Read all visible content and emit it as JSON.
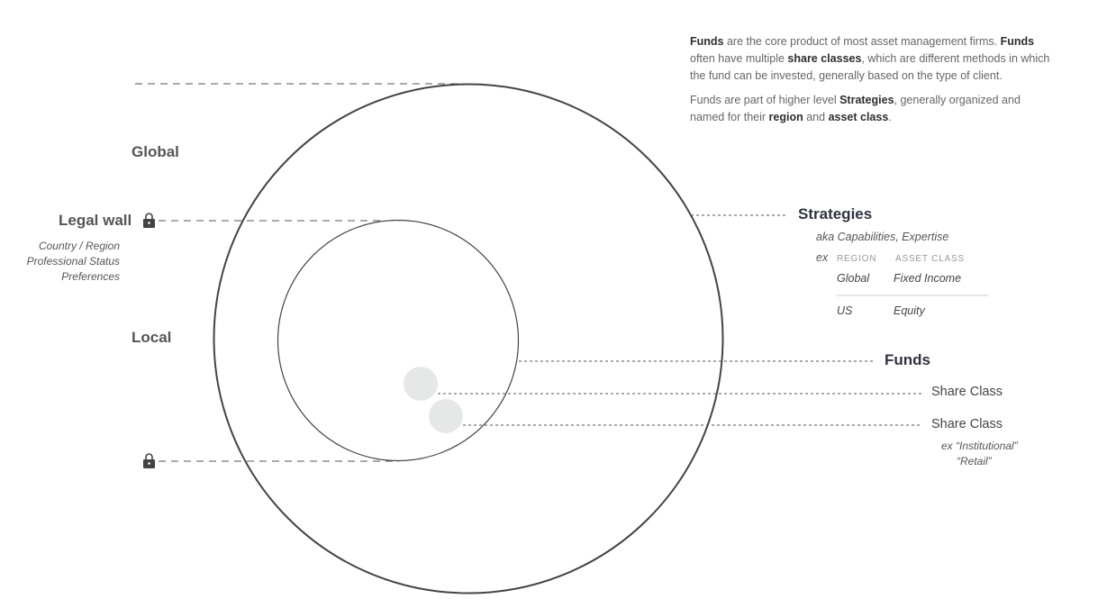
{
  "description": {
    "p1": [
      {
        "text": "Funds",
        "bold": true
      },
      {
        "text": " are the core product of most asset management firms. ",
        "bold": false
      },
      {
        "text": "Funds",
        "bold": true
      },
      {
        "text": " often have multiple ",
        "bold": false
      },
      {
        "text": "share classes",
        "bold": true
      },
      {
        "text": ", which are different methods in which the fund can be invested, generally based on the type of client.",
        "bold": false
      }
    ],
    "p2": [
      {
        "text": "Funds are part of higher level ",
        "bold": false
      },
      {
        "text": "Strategies",
        "bold": true
      },
      {
        "text": ", generally organized and named for their ",
        "bold": false
      },
      {
        "text": "region",
        "bold": true
      },
      {
        "text": " and ",
        "bold": false
      },
      {
        "text": "asset class",
        "bold": true
      },
      {
        "text": ".",
        "bold": false
      }
    ]
  },
  "left": {
    "global": "Global",
    "legal_wall": "Legal wall",
    "legal_wall_details": [
      "Country / Region",
      "Professional Status",
      "Preferences"
    ],
    "local": "Local"
  },
  "strategies": {
    "title": "Strategies",
    "aka": "aka Capabilities, Expertise",
    "ex": "ex",
    "headers": [
      "REGION",
      "ASSET CLASS"
    ],
    "rows": [
      [
        "Global",
        "Fixed Income"
      ],
      [
        "US",
        "Equity"
      ]
    ]
  },
  "funds": {
    "title": "Funds"
  },
  "share_classes": {
    "label1": "Share Class",
    "label2": "Share Class",
    "examples": [
      "ex “Institutional”",
      "“Retail”"
    ]
  },
  "icons": [
    "lock-icon",
    "lock-icon"
  ],
  "colors": {
    "outline": "#444444",
    "dashed": "#555555",
    "share_dot": "#e6e8e8",
    "lock": "#444444"
  }
}
